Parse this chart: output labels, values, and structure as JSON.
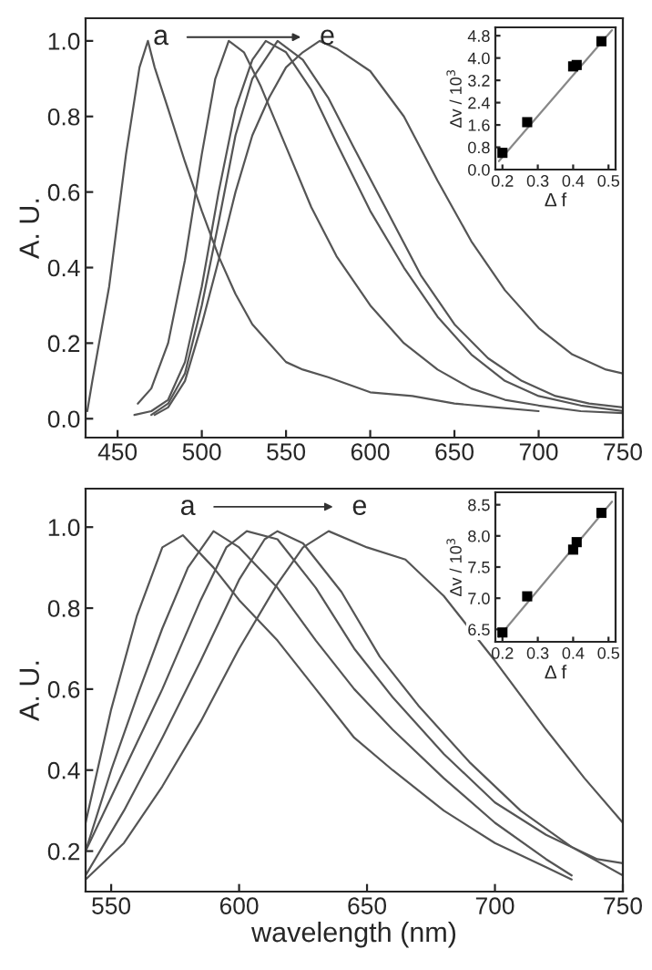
{
  "chart_data": [
    {
      "type": "line",
      "ylabel": "A. U.",
      "annotations": [
        "a",
        "e"
      ],
      "xlim": [
        431,
        750
      ],
      "ylim": [
        -0.05,
        1.06
      ],
      "xticks": [
        450,
        500,
        550,
        600,
        650,
        700,
        750
      ],
      "yticks": [
        {
          "value": 0,
          "label": "0.0"
        },
        0.2,
        0.4,
        0.6,
        0.8,
        {
          "value": 1,
          "label": "1.0"
        }
      ],
      "grid": false,
      "legend": false,
      "tick_labels": true,
      "series": [
        {
          "color": "#555555",
          "x": [
            432,
            435,
            445,
            455,
            463,
            468,
            472,
            480,
            490,
            500,
            510,
            520,
            530,
            540,
            550,
            560,
            575,
            600,
            625,
            650,
            675,
            700
          ],
          "values": [
            0.02,
            0.1,
            0.35,
            0.7,
            0.93,
            1.0,
            0.93,
            0.82,
            0.68,
            0.55,
            0.43,
            0.33,
            0.25,
            0.2,
            0.15,
            0.13,
            0.11,
            0.07,
            0.06,
            0.04,
            0.03,
            0.02
          ]
        },
        {
          "color": "#555555",
          "x": [
            462,
            470,
            480,
            490,
            500,
            508,
            516,
            525,
            535,
            550,
            565,
            580,
            600,
            620,
            640,
            660,
            680,
            700,
            725,
            750
          ],
          "values": [
            0.04,
            0.08,
            0.2,
            0.42,
            0.7,
            0.9,
            1.0,
            0.97,
            0.88,
            0.72,
            0.56,
            0.43,
            0.3,
            0.2,
            0.13,
            0.08,
            0.05,
            0.035,
            0.02,
            0.015
          ]
        },
        {
          "color": "#555555",
          "x": [
            460,
            470,
            480,
            490,
            500,
            510,
            520,
            530,
            538,
            550,
            565,
            580,
            600,
            620,
            640,
            660,
            680,
            700,
            725,
            750
          ],
          "values": [
            0.01,
            0.02,
            0.05,
            0.15,
            0.35,
            0.6,
            0.82,
            0.95,
            1.0,
            0.97,
            0.87,
            0.73,
            0.55,
            0.4,
            0.27,
            0.17,
            0.1,
            0.06,
            0.035,
            0.02
          ]
        },
        {
          "color": "#555555",
          "x": [
            470,
            480,
            490,
            500,
            510,
            520,
            530,
            545,
            560,
            575,
            590,
            610,
            630,
            650,
            670,
            690,
            710,
            730,
            750
          ],
          "values": [
            0.01,
            0.04,
            0.12,
            0.3,
            0.52,
            0.75,
            0.9,
            1.0,
            0.95,
            0.85,
            0.72,
            0.55,
            0.38,
            0.25,
            0.16,
            0.1,
            0.06,
            0.04,
            0.03
          ]
        },
        {
          "color": "#555555",
          "x": [
            472,
            480,
            490,
            500,
            510,
            520,
            530,
            540,
            550,
            560,
            570,
            580,
            600,
            620,
            640,
            660,
            680,
            700,
            720,
            740,
            750
          ],
          "values": [
            0.01,
            0.03,
            0.1,
            0.25,
            0.42,
            0.6,
            0.75,
            0.85,
            0.93,
            0.97,
            1.0,
            0.98,
            0.92,
            0.8,
            0.63,
            0.47,
            0.34,
            0.24,
            0.17,
            0.13,
            0.12
          ]
        }
      ]
    },
    {
      "type": "scatter",
      "xlabel": "Δ f",
      "ylabel": "Δv / 10$^{3}$",
      "xlim": [
        0.18,
        0.52
      ],
      "ylim": [
        0.0,
        5.1
      ],
      "xticks": [
        0.2,
        0.3,
        0.4,
        0.5
      ],
      "yticks": [
        {
          "value": 0,
          "label": "0.0"
        },
        0.8,
        1.6,
        2.4,
        3.2,
        {
          "value": 4,
          "label": "4.0"
        },
        4.8
      ],
      "marker": "square",
      "grid": false,
      "legend": false,
      "series": [
        {
          "color": "#000000",
          "x": [
            0.2,
            0.27,
            0.4,
            0.41,
            0.48
          ],
          "values": [
            0.6,
            1.7,
            3.7,
            3.75,
            4.6
          ]
        },
        {
          "type": "line",
          "marker": "none",
          "color": "#888888",
          "x": [
            0.19,
            0.51
          ],
          "values": [
            0.3,
            5.0
          ]
        }
      ]
    },
    {
      "type": "line",
      "xlabel": "wavelength (nm)",
      "ylabel": "A. U.",
      "annotations": [
        "a",
        "e"
      ],
      "xlim": [
        540,
        750
      ],
      "ylim": [
        0.1,
        1.095
      ],
      "xticks": [
        550,
        600,
        650,
        700,
        750
      ],
      "yticks": [
        0.2,
        0.4,
        0.6,
        0.8,
        {
          "value": 1,
          "label": "1.0"
        }
      ],
      "grid": false,
      "legend": false,
      "series": [
        {
          "color": "#555555",
          "x": [
            540,
            550,
            560,
            570,
            578,
            590,
            600,
            615,
            630,
            645,
            660,
            680,
            700,
            720,
            730
          ],
          "values": [
            0.27,
            0.55,
            0.78,
            0.95,
            0.98,
            0.9,
            0.82,
            0.72,
            0.6,
            0.48,
            0.4,
            0.3,
            0.22,
            0.16,
            0.13
          ]
        },
        {
          "color": "#555555",
          "x": [
            540,
            550,
            560,
            570,
            580,
            590,
            600,
            615,
            630,
            645,
            660,
            680,
            700,
            720,
            730
          ],
          "values": [
            0.2,
            0.4,
            0.58,
            0.75,
            0.9,
            0.99,
            0.95,
            0.85,
            0.72,
            0.6,
            0.5,
            0.38,
            0.27,
            0.18,
            0.14
          ]
        },
        {
          "color": "#555555",
          "x": [
            540,
            555,
            570,
            585,
            595,
            603,
            615,
            630,
            645,
            660,
            680,
            700,
            720,
            740,
            750
          ],
          "values": [
            0.2,
            0.4,
            0.6,
            0.82,
            0.95,
            0.99,
            0.97,
            0.85,
            0.7,
            0.58,
            0.44,
            0.32,
            0.24,
            0.18,
            0.17
          ]
        },
        {
          "color": "#555555",
          "x": [
            540,
            555,
            570,
            585,
            600,
            610,
            615,
            625,
            640,
            655,
            670,
            690,
            710,
            730,
            750
          ],
          "values": [
            0.14,
            0.3,
            0.48,
            0.67,
            0.87,
            0.97,
            0.99,
            0.96,
            0.84,
            0.68,
            0.56,
            0.42,
            0.3,
            0.21,
            0.14
          ]
        },
        {
          "color": "#555555",
          "x": [
            540,
            555,
            570,
            585,
            600,
            615,
            625,
            635,
            650,
            665,
            680,
            700,
            720,
            735,
            750
          ],
          "values": [
            0.13,
            0.22,
            0.36,
            0.52,
            0.7,
            0.86,
            0.95,
            0.99,
            0.95,
            0.92,
            0.83,
            0.67,
            0.5,
            0.38,
            0.27
          ]
        }
      ]
    },
    {
      "type": "scatter",
      "xlabel": "Δ f",
      "ylabel": "Δv / 10$^{3}$",
      "xlim": [
        0.18,
        0.52
      ],
      "ylim": [
        6.3,
        8.7
      ],
      "xticks": [
        0.2,
        0.3,
        0.4,
        0.5
      ],
      "yticks": [
        6.5,
        {
          "value": 7,
          "label": "7.0"
        },
        7.5,
        {
          "value": 8,
          "label": "8.0"
        },
        8.5
      ],
      "marker": "square",
      "grid": false,
      "legend": false,
      "series": [
        {
          "color": "#000000",
          "x": [
            0.2,
            0.27,
            0.4,
            0.41,
            0.48
          ],
          "values": [
            6.45,
            7.03,
            7.78,
            7.9,
            8.37
          ]
        },
        {
          "type": "line",
          "marker": "none",
          "color": "#888888",
          "x": [
            0.19,
            0.51
          ],
          "values": [
            6.38,
            8.55
          ]
        }
      ]
    }
  ]
}
